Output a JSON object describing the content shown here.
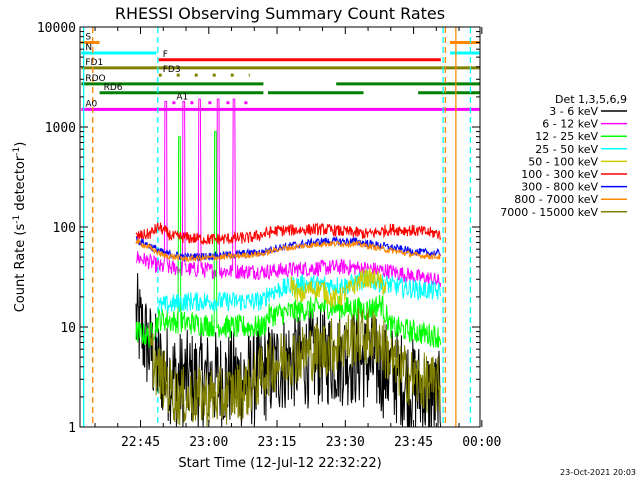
{
  "chart_data": {
    "type": "line",
    "title": "RHESSI Observing Summary Count Rates",
    "xlabel": "Start Time (12-Jul-12 22:32:22)",
    "ylabel_main": "Count Rate (s",
    "ylabel_sup": "-1",
    "ylabel_tail": " detector",
    "ylabel_sup2": "-1",
    "ylabel_close": ")",
    "yscale": "log",
    "ylim": [
      1,
      10000
    ],
    "y_ticks": [
      {
        "value": 1,
        "label": "1"
      },
      {
        "value": 10,
        "label": "10"
      },
      {
        "value": 100,
        "label": "100"
      },
      {
        "value": 1000,
        "label": "1000"
      },
      {
        "value": 10000,
        "label": "10000"
      }
    ],
    "xlim_minutes": [
      -13.3,
      74.6
    ],
    "x_ticks": [
      {
        "minutes": 0,
        "label": "22:45"
      },
      {
        "minutes": 15,
        "label": "23:00"
      },
      {
        "minutes": 30,
        "label": "23:15"
      },
      {
        "minutes": 45,
        "label": "23:30"
      },
      {
        "minutes": 60,
        "label": "23:45"
      },
      {
        "minutes": 75,
        "label": "00:00"
      }
    ],
    "timestamp": "23-Oct-2021 20:03",
    "legend": {
      "title": "Det 1,3,5,6,9",
      "placement": "right",
      "entries": [
        {
          "label": "3 - 6 keV",
          "color": "#000000"
        },
        {
          "label": "6 - 12 keV",
          "color": "#ff00ff"
        },
        {
          "label": "12 - 25 keV",
          "color": "#00ff00"
        },
        {
          "label": "25 - 50 keV",
          "color": "#00ffff"
        },
        {
          "label": "50 - 100 keV",
          "color": "#cccc00"
        },
        {
          "label": "100 - 300 keV",
          "color": "#ff0000"
        },
        {
          "label": "300 - 800 keV",
          "color": "#0000ff"
        },
        {
          "label": "800 - 7000 keV",
          "color": "#ff8800"
        },
        {
          "label": "7000 - 15000 keV",
          "color": "#808000"
        }
      ]
    },
    "flag_bars": [
      {
        "label": "S",
        "color": "#ff8800",
        "value": 7000,
        "segments": [
          [
            -13,
            -9
          ],
          [
            68,
            80
          ]
        ]
      },
      {
        "label": "N",
        "color": "#00ffff",
        "value": 5500,
        "segments": [
          [
            -13,
            3.5
          ],
          [
            68,
            80
          ]
        ]
      },
      {
        "label": "F",
        "color": "#ff0000",
        "value": 4700,
        "segments": [
          [
            4,
            66
          ]
        ]
      },
      {
        "label": "FD1",
        "color": "#808000",
        "value": 3900,
        "segments": [
          [
            -13,
            80
          ]
        ]
      },
      {
        "label": "FD3",
        "color": "#808000",
        "value": 3300,
        "dotted": true,
        "segments": [
          [
            4,
            24
          ]
        ]
      },
      {
        "label": "RDO",
        "color": "#008000",
        "value": 2700,
        "segments": [
          [
            -13,
            27
          ],
          [
            43,
            80
          ]
        ]
      },
      {
        "label": "RD6",
        "color": "#008000",
        "value": 2200,
        "segments": [
          [
            -9,
            27
          ],
          [
            28,
            49
          ],
          [
            61,
            80
          ]
        ]
      },
      {
        "label": "A0",
        "color": "#ff00ff",
        "value": 1500,
        "segments": [
          [
            -13,
            80
          ]
        ]
      },
      {
        "label": "A1",
        "color": "#ff00ff",
        "value": 1750,
        "dotted": true,
        "segments": [
          [
            7,
            24
          ]
        ]
      }
    ],
    "vlines": [
      {
        "minutes": -12.5,
        "color": "#00ffff",
        "dashed": false
      },
      {
        "minutes": -10.5,
        "color": "#ff8800",
        "dashed": true
      },
      {
        "minutes": 3.8,
        "color": "#00ffff",
        "dashed": true
      },
      {
        "minutes": 66.5,
        "color": "#00ffff",
        "dashed": true
      },
      {
        "minutes": 67.0,
        "color": "#ff8800",
        "dashed": true
      },
      {
        "minutes": 69.3,
        "color": "#ff8800",
        "dashed": false
      },
      {
        "minutes": 72.5,
        "color": "#00ffff",
        "dashed": true
      }
    ],
    "series": [
      {
        "name": "3 - 6 keV",
        "color": "#000000",
        "noise": 0.5,
        "points": [
          [
            -1,
            12
          ],
          [
            2,
            6
          ],
          [
            4,
            4
          ],
          [
            8,
            3
          ],
          [
            15,
            3
          ],
          [
            24,
            3
          ],
          [
            28,
            3.5
          ],
          [
            32,
            4.5
          ],
          [
            40,
            5
          ],
          [
            46,
            5
          ],
          [
            50,
            4.5
          ],
          [
            55,
            3.5
          ],
          [
            60,
            2.5
          ],
          [
            64,
            2.0
          ],
          [
            66,
            1.8
          ]
        ]
      },
      {
        "name": "6 - 12 keV",
        "color": "#ff00ff",
        "noise": 0.08,
        "points": [
          [
            -1,
            50
          ],
          [
            2,
            45
          ],
          [
            4,
            40
          ],
          [
            10,
            38
          ],
          [
            20,
            36
          ],
          [
            28,
            36
          ],
          [
            35,
            38
          ],
          [
            45,
            40
          ],
          [
            55,
            36
          ],
          [
            60,
            32
          ],
          [
            64,
            30
          ],
          [
            66,
            28
          ]
        ],
        "spikes": [
          [
            5.5,
            1800
          ],
          [
            9.5,
            1800
          ],
          [
            13,
            1900
          ],
          [
            17,
            1900
          ],
          [
            20.5,
            1900
          ]
        ]
      },
      {
        "name": "12 - 25 keV",
        "color": "#00ff00",
        "noise": 0.12,
        "points": [
          [
            -1,
            9
          ],
          [
            2,
            8
          ],
          [
            4,
            12
          ],
          [
            10,
            11
          ],
          [
            20,
            10
          ],
          [
            27,
            10
          ],
          [
            28,
            13
          ],
          [
            40,
            16
          ],
          [
            50,
            15
          ],
          [
            53,
            17
          ],
          [
            55,
            10
          ],
          [
            60,
            9
          ],
          [
            66,
            8
          ]
        ],
        "spikes": [
          [
            8.5,
            800
          ],
          [
            16.5,
            900
          ]
        ]
      },
      {
        "name": "25 - 50 keV",
        "color": "#00ffff",
        "noise": 0.1,
        "points": [
          [
            4,
            16
          ],
          [
            10,
            18
          ],
          [
            20,
            18
          ],
          [
            27,
            18
          ],
          [
            28,
            22
          ],
          [
            35,
            27
          ],
          [
            45,
            26
          ],
          [
            50,
            30
          ],
          [
            55,
            26
          ],
          [
            60,
            24
          ],
          [
            64,
            23
          ],
          [
            66,
            22
          ]
        ]
      },
      {
        "name": "50 - 100 keV",
        "color": "#cccc00",
        "noise": 0.1,
        "points": [
          [
            33,
            28
          ],
          [
            35,
            20
          ],
          [
            37,
            24
          ],
          [
            40,
            24
          ],
          [
            42,
            19
          ],
          [
            44,
            20
          ],
          [
            47,
            26
          ],
          [
            49,
            31
          ],
          [
            52,
            30
          ],
          [
            54,
            24
          ]
        ]
      },
      {
        "name": "100 - 300 keV",
        "color": "#ff0000",
        "noise": 0.06,
        "points": [
          [
            -1,
            80
          ],
          [
            2,
            85
          ],
          [
            4,
            100
          ],
          [
            7,
            80
          ],
          [
            15,
            75
          ],
          [
            24,
            78
          ],
          [
            27,
            85
          ],
          [
            30,
            92
          ],
          [
            40,
            95
          ],
          [
            50,
            85
          ],
          [
            55,
            95
          ],
          [
            60,
            92
          ],
          [
            66,
            85
          ]
        ]
      },
      {
        "name": "300 - 800 keV",
        "color": "#0000ff",
        "noise": 0.04,
        "points": [
          [
            -1,
            75
          ],
          [
            2,
            65
          ],
          [
            5,
            55
          ],
          [
            10,
            50
          ],
          [
            18,
            52
          ],
          [
            27,
            56
          ],
          [
            30,
            62
          ],
          [
            40,
            72
          ],
          [
            47,
            72
          ],
          [
            52,
            66
          ],
          [
            57,
            60
          ],
          [
            61,
            56
          ],
          [
            66,
            54
          ]
        ]
      },
      {
        "name": "800 - 7000 keV",
        "color": "#ff8800",
        "noise": 0.03,
        "points": [
          [
            -1,
            72
          ],
          [
            2,
            62
          ],
          [
            5,
            52
          ],
          [
            10,
            48
          ],
          [
            18,
            50
          ],
          [
            27,
            54
          ],
          [
            30,
            60
          ],
          [
            40,
            68
          ],
          [
            47,
            68
          ],
          [
            52,
            62
          ],
          [
            57,
            56
          ],
          [
            61,
            52
          ],
          [
            66,
            50
          ]
        ]
      },
      {
        "name": "7000 - 15000 keV",
        "color": "#808000",
        "noise": 0.3,
        "points": [
          [
            2,
            6
          ],
          [
            4,
            3.5
          ],
          [
            8,
            2
          ],
          [
            18,
            2
          ],
          [
            24,
            2.5
          ],
          [
            28,
            4
          ],
          [
            32,
            5
          ],
          [
            40,
            6
          ],
          [
            48,
            8
          ],
          [
            52,
            8
          ],
          [
            56,
            4
          ],
          [
            60,
            3
          ],
          [
            66,
            2.5
          ]
        ]
      }
    ]
  }
}
